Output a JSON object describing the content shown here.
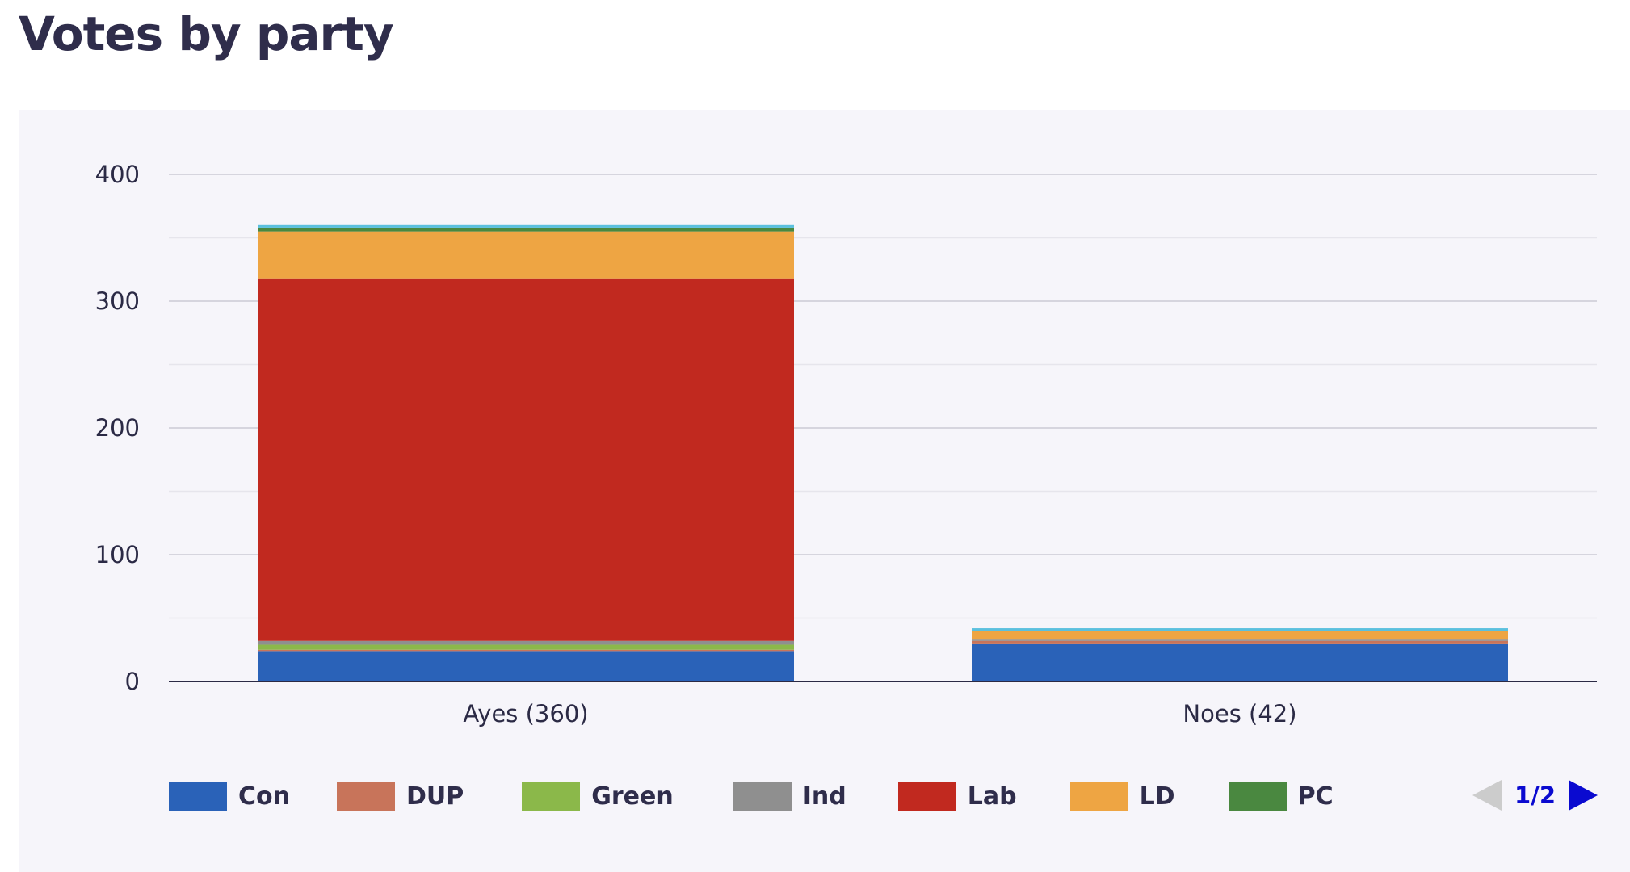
{
  "page": {
    "title": "Votes by party"
  },
  "colors": {
    "Con": "#2a62b8",
    "DUP": "#c8745a",
    "Green": "#8bb84a",
    "Ind": "#8f8f8f",
    "Lab": "#c1291f",
    "LD": "#eea543",
    "PC": "#4a8840",
    "SNP": "#f3e05a",
    "Other": "#5bc0de",
    "grid": "#d6d5de",
    "axis": "#2b2a45"
  },
  "legend": [
    {
      "label": "Con",
      "color": "#2a62b8"
    },
    {
      "label": "DUP",
      "color": "#c8745a"
    },
    {
      "label": "Green",
      "color": "#8bb84a"
    },
    {
      "label": "Ind",
      "color": "#8f8f8f"
    },
    {
      "label": "Lab",
      "color": "#c1291f"
    },
    {
      "label": "LD",
      "color": "#eea543"
    },
    {
      "label": "PC",
      "color": "#4a8840"
    }
  ],
  "pager": {
    "text": "1/2"
  },
  "chart_data": {
    "type": "bar",
    "stacked": true,
    "title": "Votes by party",
    "categories": [
      "Ayes (360)",
      "Noes (42)"
    ],
    "ylim": [
      0,
      400
    ],
    "yticks": [
      0,
      100,
      200,
      300,
      400
    ],
    "grid": true,
    "legend_position": "bottom",
    "series": [
      {
        "name": "Con",
        "values": [
          24,
          30
        ]
      },
      {
        "name": "DUP",
        "values": [
          1,
          2
        ]
      },
      {
        "name": "Green",
        "values": [
          4,
          0
        ]
      },
      {
        "name": "Ind",
        "values": [
          3,
          1
        ]
      },
      {
        "name": "Lab",
        "values": [
          286,
          0
        ]
      },
      {
        "name": "LD",
        "values": [
          37,
          7
        ]
      },
      {
        "name": "PC",
        "values": [
          3,
          0
        ]
      },
      {
        "values": [
          2,
          2
        ]
      }
    ]
  }
}
